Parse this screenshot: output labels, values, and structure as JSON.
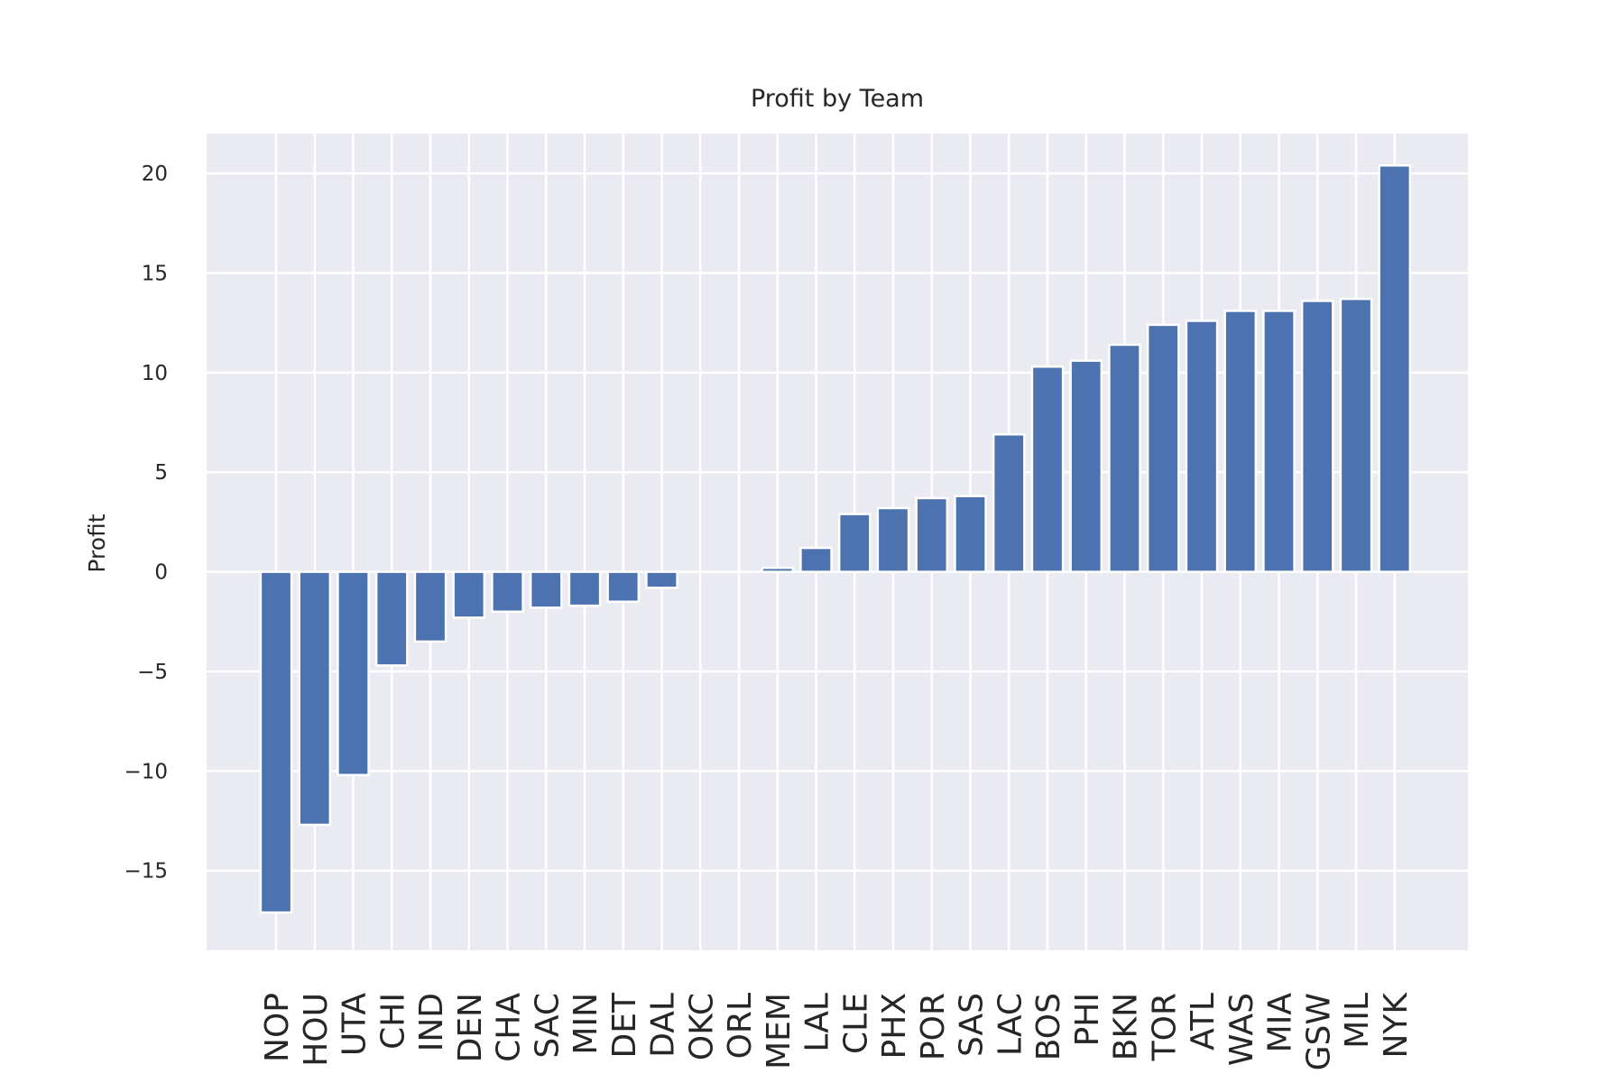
{
  "chart_data": {
    "type": "bar",
    "title": "Profit by Team",
    "xlabel": "",
    "ylabel": "Profit",
    "ylim": [
      -19,
      22
    ],
    "yticks": [
      -15,
      -10,
      -5,
      0,
      5,
      10,
      15,
      20
    ],
    "ytick_labels": [
      "−15",
      "−10",
      "−5",
      "0",
      "5",
      "10",
      "15",
      "20"
    ],
    "grid": true,
    "bar_color": "#4c72b0",
    "background_color": "#eaeaf2",
    "categories": [
      "NOP",
      "HOU",
      "UTA",
      "CHI",
      "IND",
      "DEN",
      "CHA",
      "SAC",
      "MIN",
      "DET",
      "DAL",
      "OKC",
      "ORL",
      "MEM",
      "LAL",
      "CLE",
      "PHX",
      "POR",
      "SAS",
      "LAC",
      "BOS",
      "PHI",
      "BKN",
      "TOR",
      "ATL",
      "WAS",
      "MIA",
      "GSW",
      "MIL",
      "NYK"
    ],
    "values": [
      -17.1,
      -12.7,
      -10.2,
      -4.7,
      -3.5,
      -2.3,
      -2.0,
      -1.8,
      -1.7,
      -1.5,
      -0.8,
      0.0,
      0.0,
      0.2,
      1.2,
      2.9,
      3.2,
      3.7,
      3.8,
      6.9,
      10.3,
      10.6,
      11.4,
      12.4,
      12.6,
      13.1,
      13.1,
      13.6,
      13.7,
      20.4
    ]
  }
}
